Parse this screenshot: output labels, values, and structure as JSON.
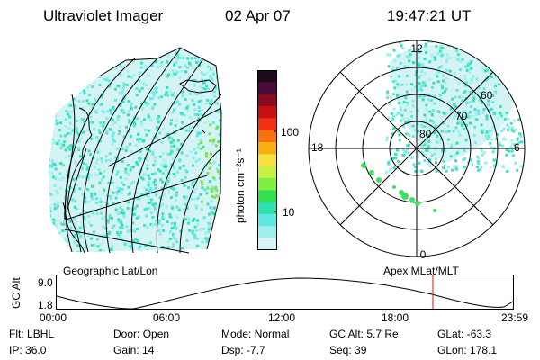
{
  "header": {
    "title": "Ultraviolet Imager",
    "date": "02 Apr 07",
    "time": "19:47:21 UT"
  },
  "colorbar": {
    "unit_label": "photon cm⁻²s⁻¹",
    "ticks": [
      "100",
      "10"
    ],
    "colors": [
      "#1a0a1a",
      "#4a0a3a",
      "#8a0a20",
      "#c81010",
      "#f03010",
      "#f87010",
      "#f8b010",
      "#f8e040",
      "#c8f040",
      "#80f040",
      "#30e050",
      "#30e0b0",
      "#60e8e0",
      "#a0f0f0",
      "#d8f4f4"
    ]
  },
  "geo_panel": {
    "label": "Geographic Lat/Lon"
  },
  "polar_panel": {
    "label": "Apex  MLat/MLT",
    "mlt_labels": {
      "top": "12",
      "bottom": "0",
      "left": "18",
      "right": "6"
    },
    "lat_labels": [
      "80",
      "70",
      "60"
    ],
    "point_color": "#40e060"
  },
  "altitude_plot": {
    "ylabel": "GC Alt",
    "ytick_top": "9.0",
    "ytick_bottom": "1.8",
    "xticks": [
      "00:00",
      "06:00",
      "12:00",
      "18:00",
      "23:59"
    ],
    "current_marker_color": "#e01010"
  },
  "info": {
    "row1": [
      {
        "label": "Flt:",
        "value": "LBHL"
      },
      {
        "label": "Door:",
        "value": "Open"
      },
      {
        "label": "Mode:",
        "value": "Normal"
      },
      {
        "label": "GC Alt:",
        "value": "5.7 Re"
      },
      {
        "label": "GLat:",
        "value": "-63.3"
      }
    ],
    "row2": [
      {
        "label": "IP:",
        "value": "36.0"
      },
      {
        "label": "Gain:",
        "value": "14"
      },
      {
        "label": "Dsp:",
        "value": "-7.7"
      },
      {
        "label": "Seq:",
        "value": "39"
      },
      {
        "label": "GLon:",
        "value": "178.1"
      }
    ]
  }
}
